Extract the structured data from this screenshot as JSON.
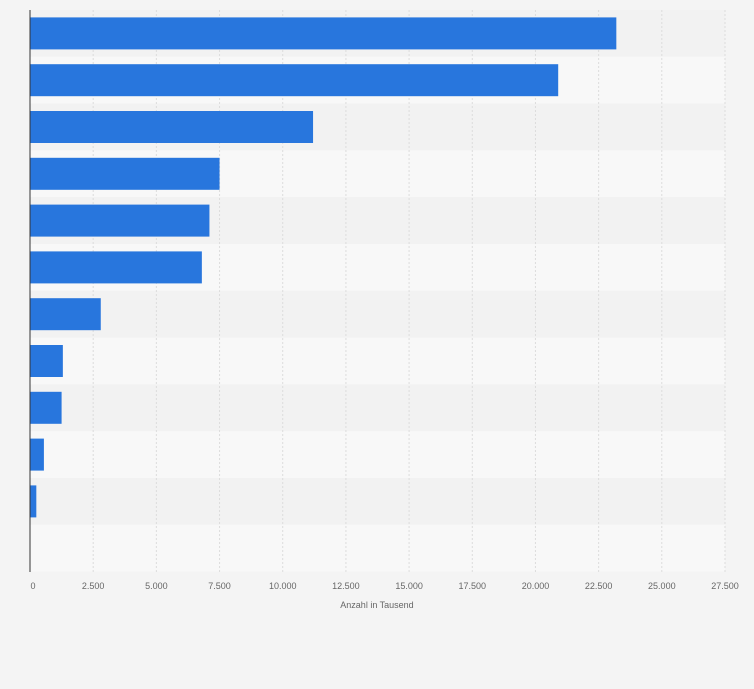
{
  "chart_data": {
    "type": "bar",
    "orientation": "horizontal",
    "categories": [
      "",
      "",
      "",
      "",
      "",
      "",
      "",
      "",
      "",
      "",
      ""
    ],
    "values": [
      23200,
      20900,
      11200,
      7500,
      7100,
      6800,
      2800,
      1300,
      1250,
      550,
      250
    ],
    "xlabel": "Anzahl in Tausend",
    "xlim": [
      0,
      27500
    ],
    "xticks": [
      0,
      2500,
      5000,
      7500,
      10000,
      12500,
      15000,
      17500,
      20000,
      22500,
      25000,
      27500
    ],
    "xtick_labels": [
      "0",
      "2.500",
      "5.000",
      "7.500",
      "10.000",
      "12.500",
      "15.000",
      "17.500",
      "20.000",
      "22.500",
      "25.000",
      "27.500"
    ],
    "grid": true,
    "colors": {
      "bar": "#2876dd",
      "band_dark": "#f2f2f2",
      "band_light": "#f8f8f8",
      "grid": "#dcdcdc",
      "axis": "#333333"
    }
  }
}
